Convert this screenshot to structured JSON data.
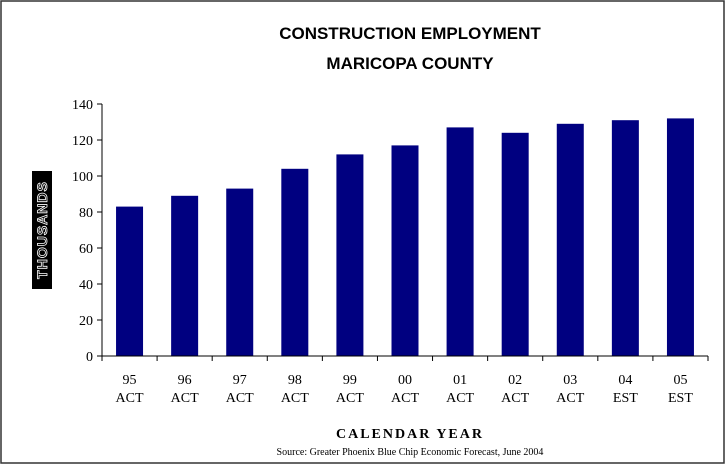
{
  "chart_data": {
    "type": "bar",
    "title": [
      "CONSTRUCTION EMPLOYMENT",
      "MARICOPA COUNTY"
    ],
    "y_label": "THOUSANDS",
    "x_label": "CALENDAR YEAR",
    "source": "Source:  Greater Phoenix Blue Chip Economic Forecast, June 2004",
    "categories": [
      [
        "95",
        "ACT"
      ],
      [
        "96",
        "ACT"
      ],
      [
        "97",
        "ACT"
      ],
      [
        "98",
        "ACT"
      ],
      [
        "99",
        "ACT"
      ],
      [
        "00",
        "ACT"
      ],
      [
        "01",
        "ACT"
      ],
      [
        "02",
        "ACT"
      ],
      [
        "03",
        "ACT"
      ],
      [
        "04",
        "EST"
      ],
      [
        "05",
        "EST"
      ]
    ],
    "values": [
      83,
      89,
      93,
      104,
      112,
      117,
      127,
      124,
      129,
      131,
      132
    ],
    "color": "#000080",
    "ylim": [
      0,
      140
    ],
    "yticks": [
      0,
      20,
      40,
      60,
      80,
      100,
      120,
      140
    ],
    "grid": false
  }
}
